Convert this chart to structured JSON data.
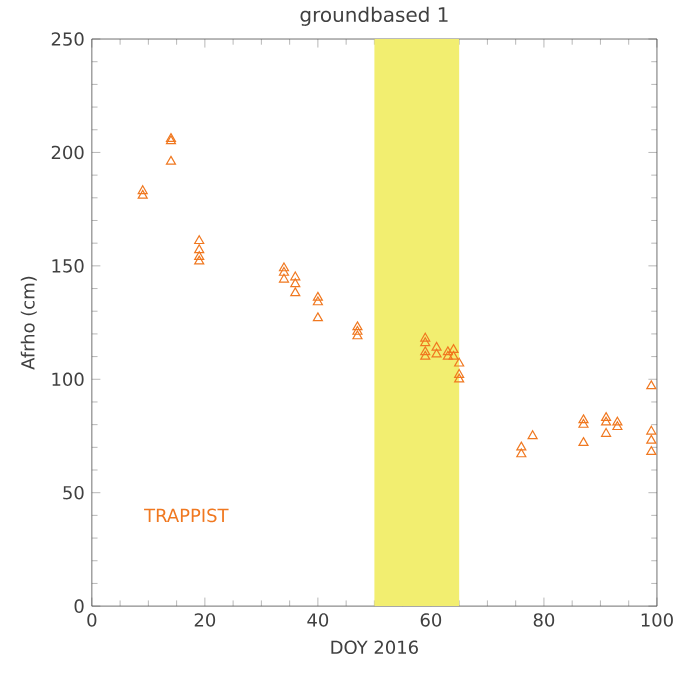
{
  "chart_data": {
    "type": "scatter",
    "title": "groundbased 1",
    "xlabel": "DOY 2016",
    "ylabel": "Afrho (cm)",
    "xlim": [
      0,
      100
    ],
    "ylim": [
      0,
      250
    ],
    "xticks": [
      0,
      20,
      40,
      60,
      80,
      100
    ],
    "yticks": [
      0,
      50,
      100,
      150,
      200,
      250
    ],
    "grid": false,
    "marker": "triangle",
    "legend": "bottom left",
    "bands": [
      {
        "axis": "x",
        "from": 50,
        "to": 65,
        "color": "#f2ee70"
      }
    ],
    "series": [
      {
        "name": "TRAPPIST",
        "color": "#f07820",
        "x": [
          9,
          9,
          14,
          14,
          14,
          19,
          19,
          19,
          19,
          34,
          34,
          34,
          36,
          36,
          36,
          40,
          40,
          40,
          47,
          47,
          47,
          59,
          59,
          59,
          59,
          61,
          61,
          63,
          63,
          64,
          64,
          65,
          65,
          65,
          76,
          76,
          78,
          87,
          87,
          87,
          91,
          91,
          91,
          93,
          93,
          99,
          99,
          99,
          99
        ],
        "values": [
          181,
          183,
          205,
          206,
          196,
          161,
          157,
          154,
          152,
          149,
          147,
          144,
          145,
          142,
          138,
          136,
          134,
          127,
          123,
          121,
          119,
          118,
          116,
          110,
          112,
          114,
          111,
          112,
          110,
          113,
          110,
          107,
          102,
          100,
          70,
          67,
          75,
          82,
          80,
          72,
          83,
          81,
          76,
          81,
          79,
          97,
          77,
          73,
          68
        ]
      }
    ]
  }
}
